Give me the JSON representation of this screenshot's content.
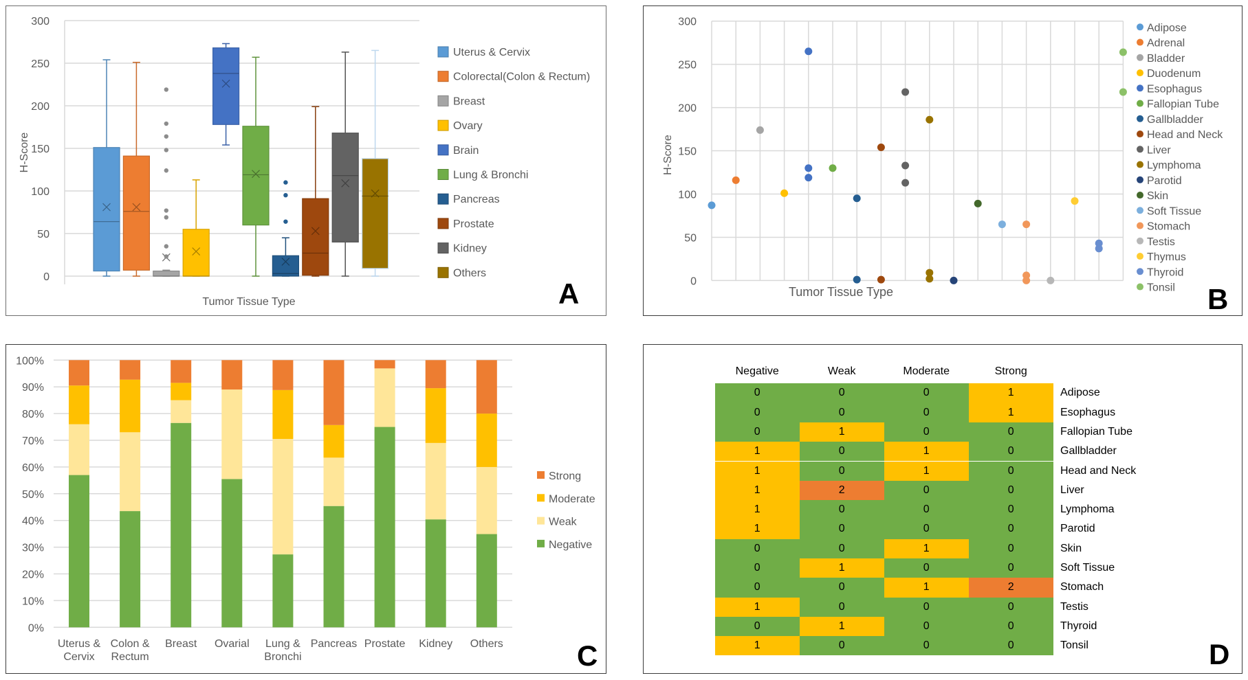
{
  "panels": {
    "a": {
      "letter": "A"
    },
    "b": {
      "letter": "B"
    },
    "c": {
      "letter": "C"
    },
    "d": {
      "letter": "D"
    }
  },
  "chart_data": [
    {
      "id": "A",
      "type": "boxplot",
      "title": "",
      "xlabel": "Tumor Tissue Type",
      "ylabel": "H-Score",
      "ylim": [
        0,
        300
      ],
      "yticks": [
        0,
        50,
        100,
        150,
        200,
        250,
        300
      ],
      "grid": true,
      "legend_position": "right",
      "series": [
        {
          "name": "Uterus & Cervix",
          "color": "#5B9BD5",
          "min": 0,
          "q1": 6,
          "median": 64,
          "q3": 151,
          "max": 254,
          "mean": 81,
          "outliers": []
        },
        {
          "name": "Colorectal(Colon & Rectum)",
          "color": "#ED7D31",
          "min": 0,
          "q1": 7,
          "median": 76,
          "q3": 141,
          "max": 251,
          "mean": 81,
          "outliers": []
        },
        {
          "name": "Breast",
          "color": "#A5A5A5",
          "min": 0,
          "q1": 0,
          "median": 0,
          "q3": 6,
          "max": 7,
          "mean": 22,
          "outliers": [
            219,
            179,
            164,
            148,
            124,
            77,
            69,
            35,
            23
          ]
        },
        {
          "name": "Ovary",
          "color": "#FFC000",
          "min": 0,
          "q1": 0,
          "median": 0,
          "q3": 55,
          "max": 113,
          "mean": 29,
          "outliers": []
        },
        {
          "name": "Brain",
          "color": "#4472C4",
          "min": 154,
          "q1": 178,
          "median": 238,
          "q3": 268,
          "max": 273,
          "mean": 226,
          "outliers": []
        },
        {
          "name": "Lung & Bronchi",
          "color": "#70AD47",
          "min": 0,
          "q1": 60,
          "median": 119,
          "q3": 176,
          "max": 257,
          "mean": 120,
          "outliers": []
        },
        {
          "name": "Pancreas",
          "color": "#255E91",
          "min": 0,
          "q1": 0,
          "median": 3,
          "q3": 24,
          "max": 45,
          "mean": 17,
          "outliers": [
            110,
            95,
            64
          ]
        },
        {
          "name": "Prostate",
          "color": "#9E480E",
          "min": 0,
          "q1": 1,
          "median": 27,
          "q3": 91,
          "max": 199,
          "mean": 53,
          "outliers": []
        },
        {
          "name": "Kidney",
          "color": "#636363",
          "min": 0,
          "q1": 40,
          "median": 118,
          "q3": 168,
          "max": 263,
          "mean": 109,
          "outliers": []
        },
        {
          "name": "Others",
          "color": "#997300",
          "min": 0,
          "q1": 9,
          "median": 94,
          "q3": 138,
          "max": 265,
          "mean": 97,
          "outliers": []
        }
      ]
    },
    {
      "id": "B",
      "type": "scatter",
      "title": "",
      "xlabel": "Tumor Tissue Type",
      "ylabel": "H-Score",
      "ylim": [
        0,
        300
      ],
      "yticks": [
        0,
        50,
        100,
        150,
        200,
        250,
        300
      ],
      "grid": true,
      "legend_position": "right",
      "series": [
        {
          "name": "Adipose",
          "color": "#5B9BD5",
          "values": [
            87
          ]
        },
        {
          "name": "Adrenal",
          "color": "#ED7D31",
          "values": [
            116
          ]
        },
        {
          "name": "Bladder",
          "color": "#A5A5A5",
          "values": [
            174
          ]
        },
        {
          "name": "Duodenum",
          "color": "#FFC000",
          "values": [
            101
          ]
        },
        {
          "name": "Esophagus",
          "color": "#4472C4",
          "values": [
            265,
            130,
            119
          ]
        },
        {
          "name": "Fallopian Tube",
          "color": "#70AD47",
          "values": [
            130
          ]
        },
        {
          "name": "Gallbladder",
          "color": "#255E91",
          "values": [
            95,
            1
          ]
        },
        {
          "name": "Head and Neck",
          "color": "#9E480E",
          "values": [
            154,
            1
          ]
        },
        {
          "name": "Liver",
          "color": "#636363",
          "values": [
            218,
            133,
            113
          ]
        },
        {
          "name": "Lymphoma",
          "color": "#997300",
          "values": [
            186,
            9,
            2
          ]
        },
        {
          "name": "Parotid",
          "color": "#264478",
          "values": [
            0
          ]
        },
        {
          "name": "Skin",
          "color": "#43682B",
          "values": [
            89
          ]
        },
        {
          "name": "Soft Tissue",
          "color": "#7CAFDD",
          "values": [
            65
          ]
        },
        {
          "name": "Stomach",
          "color": "#F1975A",
          "values": [
            65,
            6,
            0
          ]
        },
        {
          "name": "Testis",
          "color": "#B7B7B7",
          "values": [
            0
          ]
        },
        {
          "name": "Thymus",
          "color": "#FFCD33",
          "values": [
            92
          ]
        },
        {
          "name": "Thyroid",
          "color": "#698ED0",
          "values": [
            43,
            37
          ]
        },
        {
          "name": "Tonsil",
          "color": "#8CC168",
          "values": [
            264,
            218
          ]
        }
      ]
    },
    {
      "id": "C",
      "type": "bar",
      "stacked": "percent",
      "title": "",
      "xlabel": "",
      "ylabel": "",
      "ylim": [
        0,
        100
      ],
      "yticks": [
        "0%",
        "10%",
        "20%",
        "30%",
        "40%",
        "50%",
        "60%",
        "70%",
        "80%",
        "90%",
        "100%"
      ],
      "grid": true,
      "legend_position": "right",
      "categories": [
        "Uterus & Cervix",
        "Colon & Rectum",
        "Breast",
        "Ovarial",
        "Lung & Bronchi",
        "Pancreas",
        "Prostate",
        "Kidney",
        "Others"
      ],
      "category_lines": [
        [
          "Uterus &",
          "Cervix"
        ],
        [
          "Colon &",
          "Rectum"
        ],
        [
          "Breast"
        ],
        [
          "Ovarial"
        ],
        [
          "Lung &",
          "Bronchi"
        ],
        [
          "Pancreas"
        ],
        [
          "Prostate"
        ],
        [
          "Kidney"
        ],
        [
          "Others"
        ]
      ],
      "series": [
        {
          "name": "Negative",
          "color": "#70AD47",
          "values": [
            57.0,
            43.5,
            76.5,
            55.5,
            27.3,
            45.4,
            75.0,
            40.4,
            34.9
          ]
        },
        {
          "name": "Weak",
          "color": "#FFE699",
          "values": [
            19.0,
            29.5,
            8.5,
            33.5,
            43.2,
            18.1,
            21.9,
            28.6,
            25.1
          ]
        },
        {
          "name": "Moderate",
          "color": "#FFC000",
          "values": [
            14.5,
            19.7,
            6.5,
            0.0,
            18.3,
            12.2,
            0.0,
            20.5,
            20.0
          ]
        },
        {
          "name": "Strong",
          "color": "#ED7D31",
          "values": [
            9.5,
            7.3,
            8.5,
            11.0,
            11.2,
            24.3,
            3.1,
            10.5,
            20.0
          ]
        }
      ],
      "legend_order": [
        "Strong",
        "Moderate",
        "Weak",
        "Negative"
      ]
    },
    {
      "id": "D",
      "type": "heatmap",
      "title": "",
      "columns": [
        "Negative",
        "Weak",
        "Moderate",
        "Strong"
      ],
      "rows": [
        "Adipose",
        "Esophagus",
        "Fallopian Tube",
        "Gallbladder",
        "Head and Neck",
        "Liver",
        "Lymphoma",
        "Parotid",
        "Skin",
        "Soft Tissue",
        "Stomach",
        "Testis",
        "Thyroid",
        "Tonsil"
      ],
      "values": [
        [
          0,
          0,
          0,
          1
        ],
        [
          0,
          0,
          0,
          1
        ],
        [
          0,
          1,
          0,
          0
        ],
        [
          1,
          0,
          1,
          0
        ],
        [
          1,
          0,
          1,
          0
        ],
        [
          1,
          2,
          0,
          0
        ],
        [
          1,
          0,
          0,
          0
        ],
        [
          1,
          0,
          0,
          0
        ],
        [
          0,
          0,
          1,
          0
        ],
        [
          0,
          1,
          0,
          0
        ],
        [
          0,
          0,
          1,
          2
        ],
        [
          1,
          0,
          0,
          0
        ],
        [
          0,
          1,
          0,
          0
        ],
        [
          1,
          0,
          0,
          0
        ]
      ],
      "color_scale": {
        "0": "#70AD47",
        "1": "#FFC000",
        "2": "#ED7D31"
      }
    }
  ]
}
